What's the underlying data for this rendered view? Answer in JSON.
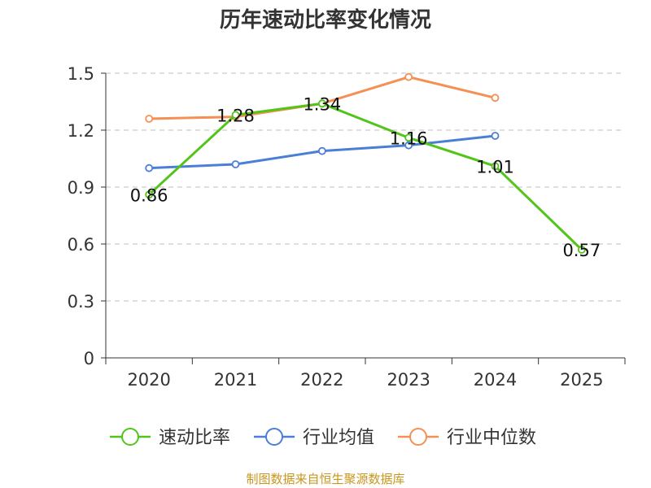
{
  "chart_data": {
    "type": "line",
    "title": "历年速动比率变化情况",
    "categories": [
      "2020",
      "2021",
      "2022",
      "2023",
      "2024",
      "2025"
    ],
    "ylim": [
      0,
      1.5
    ],
    "yticks": [
      "0",
      "0.3",
      "0.6",
      "0.9",
      "1.2",
      "1.5"
    ],
    "ytick_values": [
      0,
      0.3,
      0.6,
      0.9,
      1.2,
      1.5
    ],
    "grid": true,
    "legend_position": "bottom",
    "series": [
      {
        "name": "速动比率",
        "color": "#52c41a",
        "values": [
          0.86,
          1.28,
          1.34,
          1.16,
          1.01,
          0.57
        ],
        "labels": [
          "0.86",
          "1.28",
          "1.34",
          "1.16",
          "1.01",
          "0.57"
        ]
      },
      {
        "name": "行业均值",
        "color": "#4a7fd6",
        "values": [
          1.0,
          1.02,
          1.09,
          1.12,
          1.17,
          null
        ]
      },
      {
        "name": "行业中位数",
        "color": "#f59055",
        "values": [
          1.26,
          1.27,
          1.34,
          1.48,
          1.37,
          null
        ]
      }
    ]
  },
  "footer": {
    "source": "制图数据来自恒生聚源数据库"
  }
}
